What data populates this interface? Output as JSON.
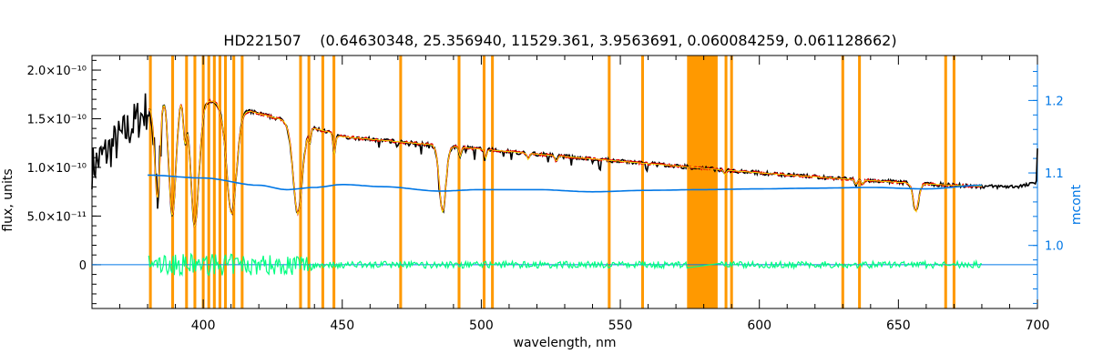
{
  "chart_data": {
    "type": "line",
    "title": "HD221507    (0.64630348, 25.356940, 11529.361, 3.9563691, 0.060084259, 0.061128662)",
    "xlabel": "wavelength, nm",
    "ylabel": "flux, units",
    "y2label": "mcont",
    "xlim": [
      360,
      700
    ],
    "ylim": [
      -4.5e-11,
      2.15e-10
    ],
    "y2lim": [
      0.913,
      1.262
    ],
    "x_ticks": [
      "400",
      "450",
      "500",
      "550",
      "600",
      "650",
      "700"
    ],
    "x_tick_values": [
      400,
      450,
      500,
      550,
      600,
      650,
      700
    ],
    "y_ticks": [
      "0",
      "5.0×10⁻¹¹",
      "1.0×10⁻¹⁰",
      "1.5×10⁻¹⁰",
      "2.0×10⁻¹⁰"
    ],
    "y_tick_values": [
      0,
      5e-11,
      1e-10,
      1.5e-10,
      2e-10
    ],
    "y2_ticks": [
      "1.0",
      "1.1",
      "1.2"
    ],
    "y2_tick_values": [
      1.0,
      1.1,
      1.2
    ],
    "masked_regions": [
      [
        380.5,
        381.5
      ],
      [
        388.5,
        389.5
      ],
      [
        393.5,
        394.5
      ],
      [
        396.5,
        397.5
      ],
      [
        399.5,
        400.5
      ],
      [
        401.5,
        402.5
      ],
      [
        403.5,
        404.5
      ],
      [
        405.5,
        406.5
      ],
      [
        407.5,
        408.5
      ],
      [
        410.5,
        411.5
      ],
      [
        413.5,
        414.5
      ],
      [
        434.5,
        435.5
      ],
      [
        437.5,
        438.5
      ],
      [
        442.5,
        443.5
      ],
      [
        446.5,
        447.5
      ],
      [
        470.5,
        471.5
      ],
      [
        491.5,
        492.5
      ],
      [
        500.5,
        501.5
      ],
      [
        503.5,
        504.5
      ],
      [
        545.5,
        546.5
      ],
      [
        557.5,
        558.5
      ],
      [
        574.0,
        585.0
      ],
      [
        587.5,
        588.5
      ],
      [
        589.5,
        590.5
      ],
      [
        629.5,
        630.5
      ],
      [
        635.5,
        636.5
      ],
      [
        666.5,
        667.5
      ],
      [
        669.5,
        670.5
      ]
    ],
    "continuum_nodes": [
      [
        380,
        1.097
      ],
      [
        400,
        1.093
      ],
      [
        420,
        1.083
      ],
      [
        430,
        1.077
      ],
      [
        440,
        1.08
      ],
      [
        450,
        1.084
      ],
      [
        465,
        1.081
      ],
      [
        485,
        1.075
      ],
      [
        500,
        1.077
      ],
      [
        520,
        1.077
      ],
      [
        540,
        1.074
      ],
      [
        560,
        1.076
      ],
      [
        580,
        1.077
      ],
      [
        600,
        1.078
      ],
      [
        620,
        1.079
      ],
      [
        640,
        1.08
      ],
      [
        660,
        1.078
      ],
      [
        680,
        1.083
      ]
    ],
    "absorption_lines": [
      [
        383.5,
        0.6,
        1.2
      ],
      [
        388.9,
        0.72,
        1.6
      ],
      [
        397.0,
        0.74,
        1.9
      ],
      [
        410.2,
        0.68,
        2.2
      ],
      [
        434.0,
        0.64,
        2.0
      ],
      [
        486.1,
        0.56,
        1.4
      ],
      [
        656.3,
        0.35,
        1.2
      ],
      [
        393.4,
        0.25,
        0.7
      ],
      [
        396.8,
        0.15,
        0.7
      ],
      [
        447.1,
        0.15,
        0.5
      ],
      [
        438.3,
        0.1,
        0.5
      ],
      [
        492.4,
        0.08,
        0.5
      ],
      [
        501.6,
        0.08,
        0.5
      ],
      [
        516.9,
        0.06,
        0.5
      ],
      [
        527.0,
        0.05,
        0.5
      ],
      [
        587.6,
        0.05,
        0.5
      ],
      [
        634.7,
        0.06,
        0.5
      ],
      [
        637.1,
        0.05,
        0.5
      ]
    ],
    "series": [
      {
        "name": "",
        "color": "#000000"
      },
      {
        "name": "",
        "color": "#e60000"
      },
      {
        "name": "",
        "color": "#ffff00"
      },
      {
        "name": "",
        "color": "#0077e6"
      },
      {
        "name": "",
        "color": "#00ff80"
      }
    ],
    "mask_color": "#ff9900"
  }
}
